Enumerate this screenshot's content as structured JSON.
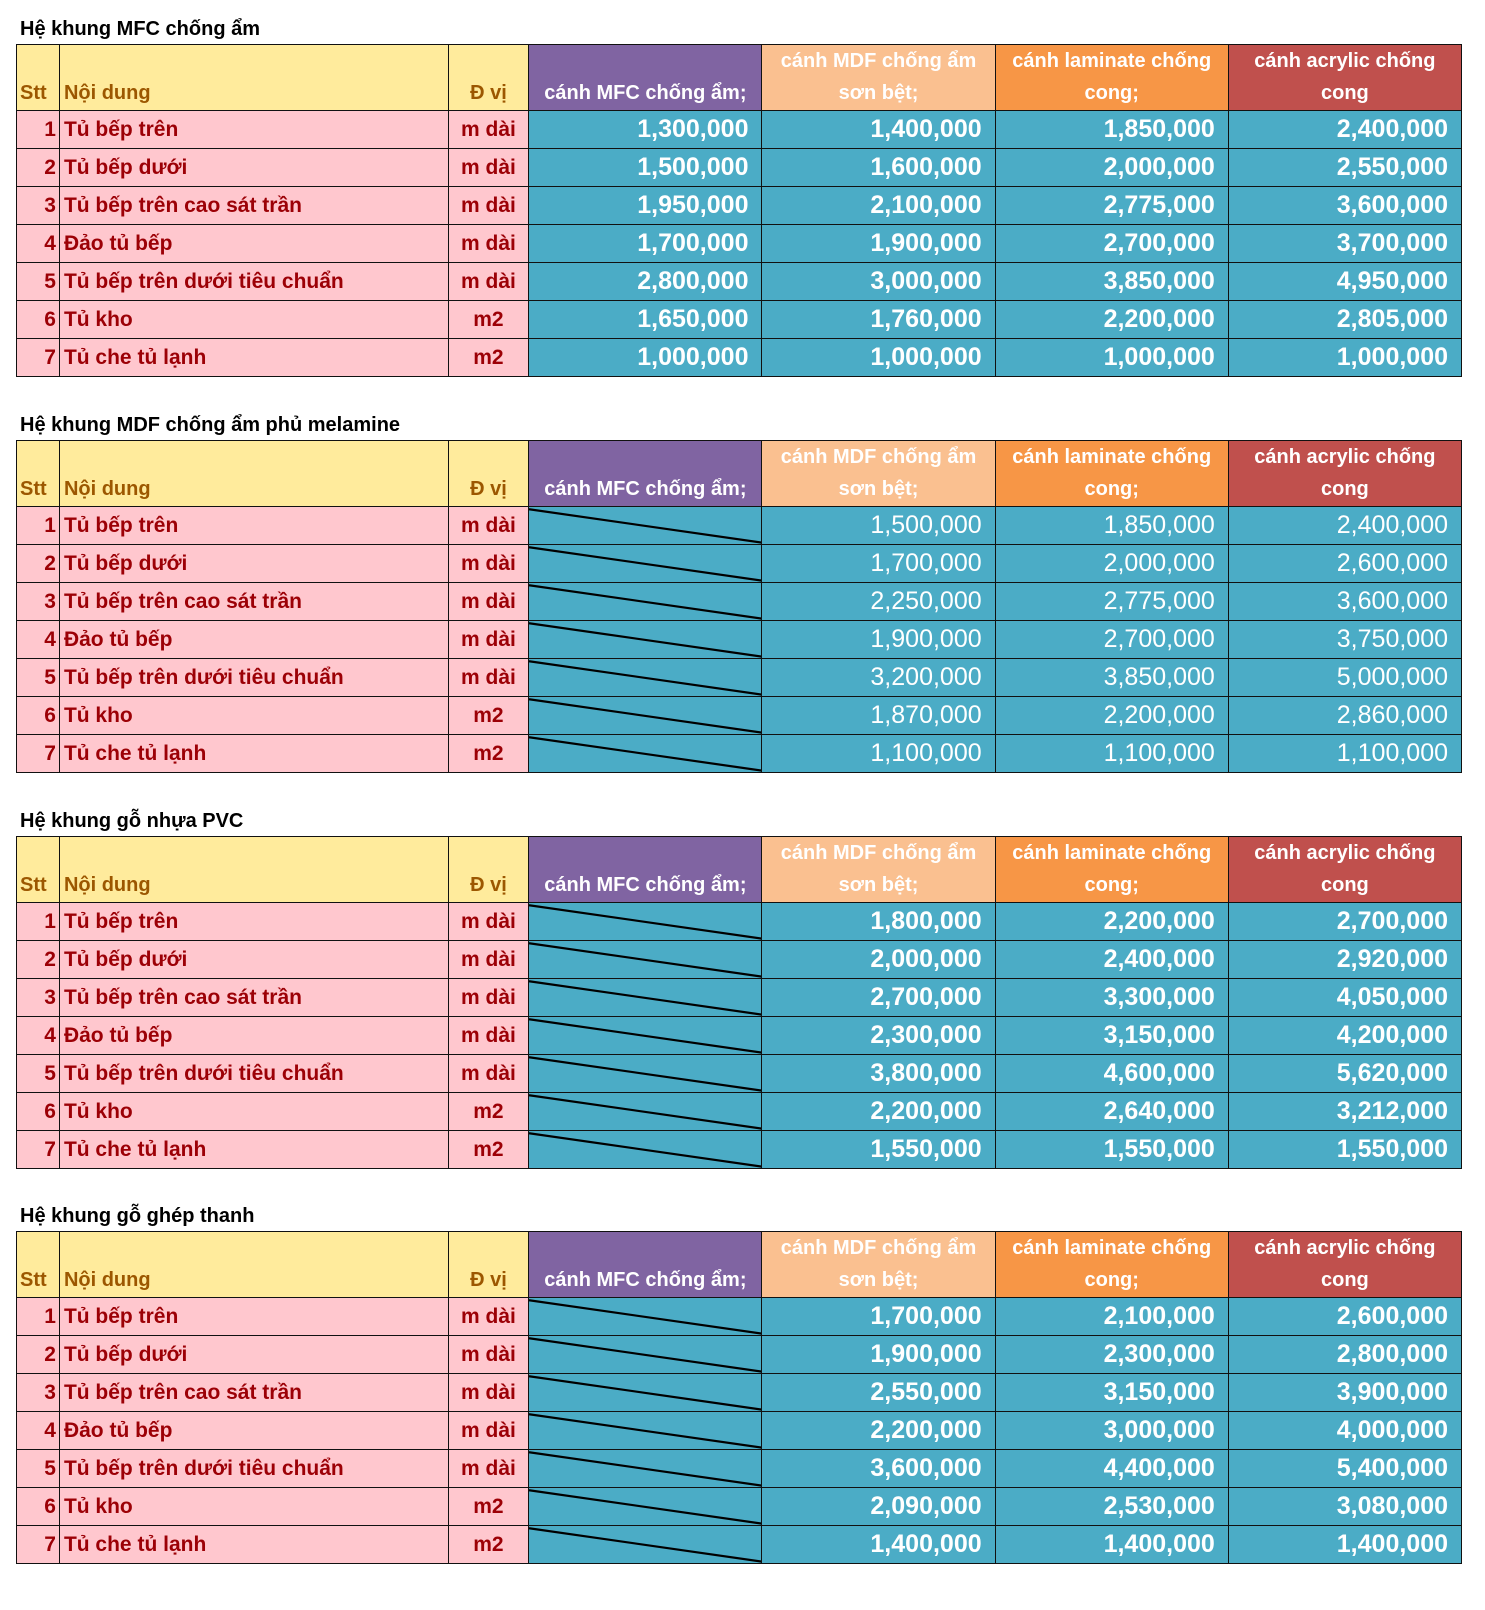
{
  "headers": {
    "stt": "Stt",
    "noi_dung": "Nội dung",
    "don_vi": "Đ vị",
    "mfc": "cánh MFC chống ẩm;",
    "mdf": "cánh MDF chống ẩm sơn bệt;",
    "laminate": "cánh laminate chống cong;",
    "acrylic": "cánh acrylic chống cong"
  },
  "sections": [
    {
      "title": "Hệ khung MFC chống ẩm",
      "rows": [
        {
          "stt": "1",
          "name": "Tủ bếp trên",
          "unit": "m dài",
          "mfc": "1,300,000",
          "mdf": "1,400,000",
          "laminate": "1,850,000",
          "acrylic": "2,400,000"
        },
        {
          "stt": "2",
          "name": "Tủ bếp dưới",
          "unit": "m dài",
          "mfc": "1,500,000",
          "mdf": "1,600,000",
          "laminate": "2,000,000",
          "acrylic": "2,550,000"
        },
        {
          "stt": "3",
          "name": "Tủ bếp trên cao sát trần",
          "unit": "m dài",
          "mfc": "1,950,000",
          "mdf": "2,100,000",
          "laminate": "2,775,000",
          "acrylic": "3,600,000"
        },
        {
          "stt": "4",
          "name": "Đảo tủ bếp",
          "unit": "m dài",
          "mfc": "1,700,000",
          "mdf": "1,900,000",
          "laminate": "2,700,000",
          "acrylic": "3,700,000"
        },
        {
          "stt": "5",
          "name": "Tủ bếp trên dưới tiêu chuẩn",
          "unit": "m dài",
          "mfc": "2,800,000",
          "mdf": "3,000,000",
          "laminate": "3,850,000",
          "acrylic": "4,950,000"
        },
        {
          "stt": "6",
          "name": "Tủ kho",
          "unit": "m2",
          "mfc": "1,650,000",
          "mdf": "1,760,000",
          "laminate": "2,200,000",
          "acrylic": "2,805,000"
        },
        {
          "stt": "7",
          "name": "Tủ che tủ lạnh",
          "unit": "m2",
          "mfc": "1,000,000",
          "mdf": "1,000,000",
          "laminate": "1,000,000",
          "acrylic": "1,000,000"
        }
      ]
    },
    {
      "title": "Hệ khung MDF chống ẩm phủ melamine",
      "rows": [
        {
          "stt": "1",
          "name": "Tủ bếp trên",
          "unit": "m dài",
          "mfc": "",
          "mdf": "1,500,000",
          "laminate": "1,850,000",
          "acrylic": "2,400,000"
        },
        {
          "stt": "2",
          "name": "Tủ bếp dưới",
          "unit": "m dài",
          "mfc": "",
          "mdf": "1,700,000",
          "laminate": "2,000,000",
          "acrylic": "2,600,000"
        },
        {
          "stt": "3",
          "name": "Tủ bếp trên cao sát trần",
          "unit": "m dài",
          "mfc": "",
          "mdf": "2,250,000",
          "laminate": "2,775,000",
          "acrylic": "3,600,000"
        },
        {
          "stt": "4",
          "name": "Đảo tủ bếp",
          "unit": "m dài",
          "mfc": "",
          "mdf": "1,900,000",
          "laminate": "2,700,000",
          "acrylic": "3,750,000"
        },
        {
          "stt": "5",
          "name": "Tủ bếp trên dưới tiêu chuẩn",
          "unit": "m dài",
          "mfc": "",
          "mdf": "3,200,000",
          "laminate": "3,850,000",
          "acrylic": "5,000,000"
        },
        {
          "stt": "6",
          "name": "Tủ kho",
          "unit": "m2",
          "mfc": "",
          "mdf": "1,870,000",
          "laminate": "2,200,000",
          "acrylic": "2,860,000"
        },
        {
          "stt": "7",
          "name": "Tủ che tủ lạnh",
          "unit": "m2",
          "mfc": "",
          "mdf": "1,100,000",
          "laminate": "1,100,000",
          "acrylic": "1,100,000"
        }
      ]
    },
    {
      "title": "Hệ khung gỗ nhựa PVC",
      "rows": [
        {
          "stt": "1",
          "name": "Tủ bếp trên",
          "unit": "m dài",
          "mfc": "",
          "mdf": "1,800,000",
          "laminate": "2,200,000",
          "acrylic": "2,700,000"
        },
        {
          "stt": "2",
          "name": "Tủ bếp dưới",
          "unit": "m dài",
          "mfc": "",
          "mdf": "2,000,000",
          "laminate": "2,400,000",
          "acrylic": "2,920,000"
        },
        {
          "stt": "3",
          "name": "Tủ bếp trên cao sát trần",
          "unit": "m dài",
          "mfc": "",
          "mdf": "2,700,000",
          "laminate": "3,300,000",
          "acrylic": "4,050,000"
        },
        {
          "stt": "4",
          "name": "Đảo tủ bếp",
          "unit": "m dài",
          "mfc": "",
          "mdf": "2,300,000",
          "laminate": "3,150,000",
          "acrylic": "4,200,000"
        },
        {
          "stt": "5",
          "name": "Tủ bếp trên dưới tiêu chuẩn",
          "unit": "m dài",
          "mfc": "",
          "mdf": "3,800,000",
          "laminate": "4,600,000",
          "acrylic": "5,620,000"
        },
        {
          "stt": "6",
          "name": "Tủ kho",
          "unit": "m2",
          "mfc": "",
          "mdf": "2,200,000",
          "laminate": "2,640,000",
          "acrylic": "3,212,000"
        },
        {
          "stt": "7",
          "name": "Tủ che tủ lạnh",
          "unit": "m2",
          "mfc": "",
          "mdf": "1,550,000",
          "laminate": "1,550,000",
          "acrylic": "1,550,000"
        }
      ]
    },
    {
      "title": "Hệ khung gỗ ghép thanh",
      "rows": [
        {
          "stt": "1",
          "name": "Tủ bếp trên",
          "unit": "m dài",
          "mfc": "",
          "mdf": "1,700,000",
          "laminate": "2,100,000",
          "acrylic": "2,600,000"
        },
        {
          "stt": "2",
          "name": "Tủ bếp dưới",
          "unit": "m dài",
          "mfc": "",
          "mdf": "1,900,000",
          "laminate": "2,300,000",
          "acrylic": "2,800,000"
        },
        {
          "stt": "3",
          "name": "Tủ bếp trên cao sát trần",
          "unit": "m dài",
          "mfc": "",
          "mdf": "2,550,000",
          "laminate": "3,150,000",
          "acrylic": "3,900,000"
        },
        {
          "stt": "4",
          "name": "Đảo tủ bếp",
          "unit": "m dài",
          "mfc": "",
          "mdf": "2,200,000",
          "laminate": "3,000,000",
          "acrylic": "4,000,000"
        },
        {
          "stt": "5",
          "name": "Tủ bếp trên dưới tiêu chuẩn",
          "unit": "m dài",
          "mfc": "",
          "mdf": "3,600,000",
          "laminate": "4,400,000",
          "acrylic": "5,400,000"
        },
        {
          "stt": "6",
          "name": "Tủ kho",
          "unit": "m2",
          "mfc": "",
          "mdf": "2,090,000",
          "laminate": "2,530,000",
          "acrylic": "3,080,000"
        },
        {
          "stt": "7",
          "name": "Tủ che tủ lạnh",
          "unit": "m2",
          "mfc": "",
          "mdf": "1,400,000",
          "laminate": "1,400,000",
          "acrylic": "1,400,000"
        }
      ]
    }
  ]
}
